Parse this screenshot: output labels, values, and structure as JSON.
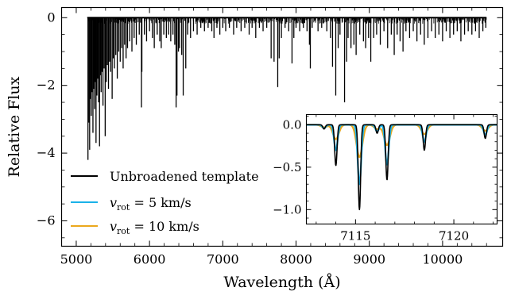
{
  "chart_data": [
    {
      "id": "main",
      "type": "line",
      "title": "",
      "xlabel": "Wavelength (Å)",
      "ylabel": "Relative Flux",
      "xlim": [
        4800,
        10820
      ],
      "ylim": [
        -6.75,
        0.3
      ],
      "xticks": [
        5000,
        6000,
        7000,
        8000,
        9000,
        10000
      ],
      "xtick_labels": [
        "5000",
        "6000",
        "7000",
        "8000",
        "9000",
        "10000"
      ],
      "yticks": [
        0,
        -2,
        -4,
        -6
      ],
      "ytick_labels": [
        "0",
        "−2",
        "−4",
        "−6"
      ],
      "grid": false,
      "legend_position": "lower-left",
      "legend": [
        {
          "label": "Unbroadened template",
          "color": "#000000"
        },
        {
          "label": "v_rot = 5 km/s",
          "color": "#1ab2e8"
        },
        {
          "label": "v_rot = 10 km/s",
          "color": "#eba81c"
        }
      ],
      "series": [
        {
          "name": "Unbroadened template",
          "continuum": 0.0,
          "wavelength_range": [
            5150,
            10600
          ],
          "absorption_lines": [
            [
              5160,
              -4.2
            ],
            [
              5172,
              -3.1
            ],
            [
              5183,
              -3.9
            ],
            [
              5195,
              -2.4
            ],
            [
              5205,
              -2.9
            ],
            [
              5215,
              -2.2
            ],
            [
              5228,
              -3.4
            ],
            [
              5240,
              -2.1
            ],
            [
              5250,
              -2.7
            ],
            [
              5262,
              -1.9
            ],
            [
              5270,
              -3.7
            ],
            [
              5282,
              -2.3
            ],
            [
              5295,
              -1.8
            ],
            [
              5305,
              -2.5
            ],
            [
              5318,
              -3.8
            ],
            [
              5330,
              -1.7
            ],
            [
              5340,
              -2.2
            ],
            [
              5352,
              -1.6
            ],
            [
              5365,
              -2.6
            ],
            [
              5380,
              -1.5
            ],
            [
              5395,
              -3.5
            ],
            [
              5410,
              -1.9
            ],
            [
              5425,
              -1.4
            ],
            [
              5440,
              -2.1
            ],
            [
              5455,
              -1.3
            ],
            [
              5470,
              -1.6
            ],
            [
              5490,
              -2.4
            ],
            [
              5505,
              -1.2
            ],
            [
              5520,
              -1.5
            ],
            [
              5540,
              -1.1
            ],
            [
              5560,
              -1.8
            ],
            [
              5580,
              -1.0
            ],
            [
              5600,
              -1.3
            ],
            [
              5620,
              -0.9
            ],
            [
              5640,
              -1.5
            ],
            [
              5660,
              -0.8
            ],
            [
              5680,
              -1.2
            ],
            [
              5700,
              -0.9
            ],
            [
              5730,
              -0.7
            ],
            [
              5760,
              -1.0
            ],
            [
              5790,
              -0.6
            ],
            [
              5820,
              -0.8
            ],
            [
              5860,
              -0.5
            ],
            [
              5890,
              -2.65
            ],
            [
              5896,
              -1.6
            ],
            [
              5930,
              -0.5
            ],
            [
              5960,
              -0.7
            ],
            [
              6000,
              -0.4
            ],
            [
              6040,
              -0.6
            ],
            [
              6065,
              -0.9
            ],
            [
              6105,
              -0.5
            ],
            [
              6140,
              -0.7
            ],
            [
              6160,
              -0.9
            ],
            [
              6195,
              -0.5
            ],
            [
              6230,
              -0.6
            ],
            [
              6260,
              -0.5
            ],
            [
              6290,
              -0.7
            ],
            [
              6320,
              -0.5
            ],
            [
              6345,
              -0.8
            ],
            [
              6363,
              -2.65
            ],
            [
              6375,
              -2.3
            ],
            [
              6395,
              -1.0
            ],
            [
              6410,
              -0.9
            ],
            [
              6440,
              -1.1
            ],
            [
              6460,
              -2.3
            ],
            [
              6495,
              -1.5
            ],
            [
              6520,
              -0.5
            ],
            [
              6560,
              -0.6
            ],
            [
              6600,
              -0.4
            ],
            [
              6650,
              -0.5
            ],
            [
              6700,
              -0.3
            ],
            [
              6750,
              -0.4
            ],
            [
              6800,
              -0.3
            ],
            [
              6850,
              -0.4
            ],
            [
              6880,
              -0.6
            ],
            [
              6920,
              -0.3
            ],
            [
              6960,
              -0.5
            ],
            [
              7000,
              -0.3
            ],
            [
              7040,
              -0.4
            ],
            [
              7090,
              -0.3
            ],
            [
              7148,
              -0.5
            ],
            [
              7190,
              -0.3
            ],
            [
              7250,
              -0.4
            ],
            [
              7300,
              -0.3
            ],
            [
              7360,
              -0.5
            ],
            [
              7400,
              -0.3
            ],
            [
              7450,
              -0.6
            ],
            [
              7500,
              -0.3
            ],
            [
              7550,
              -0.4
            ],
            [
              7600,
              -0.3
            ],
            [
              7660,
              -1.2
            ],
            [
              7700,
              -1.3
            ],
            [
              7750,
              -2.05
            ],
            [
              7770,
              -1.2
            ],
            [
              7800,
              -0.6
            ],
            [
              7850,
              -0.3
            ],
            [
              7900,
              -0.4
            ],
            [
              7945,
              -1.35
            ],
            [
              7970,
              -0.6
            ],
            [
              8000,
              -0.3
            ],
            [
              8050,
              -0.4
            ],
            [
              8100,
              -0.3
            ],
            [
              8150,
              -0.4
            ],
            [
              8183,
              -0.8
            ],
            [
              8195,
              -1.5
            ],
            [
              8220,
              -0.3
            ],
            [
              8300,
              -0.4
            ],
            [
              8350,
              -0.3
            ],
            [
              8420,
              -0.4
            ],
            [
              8470,
              -0.6
            ],
            [
              8498,
              -1.45
            ],
            [
              8542,
              -2.3
            ],
            [
              8575,
              -0.9
            ],
            [
              8600,
              -0.5
            ],
            [
              8662,
              -2.5
            ],
            [
              8690,
              -1.3
            ],
            [
              8710,
              -0.6
            ],
            [
              8750,
              -0.9
            ],
            [
              8790,
              -0.8
            ],
            [
              8820,
              -1.1
            ],
            [
              8870,
              -0.5
            ],
            [
              8920,
              -0.7
            ],
            [
              8950,
              -0.9
            ],
            [
              8990,
              -0.6
            ],
            [
              9020,
              -1.3
            ],
            [
              9060,
              -0.6
            ],
            [
              9100,
              -0.5
            ],
            [
              9150,
              -0.8
            ],
            [
              9200,
              -0.4
            ],
            [
              9250,
              -0.9
            ],
            [
              9300,
              -0.5
            ],
            [
              9340,
              -1.1
            ],
            [
              9380,
              -0.5
            ],
            [
              9420,
              -0.7
            ],
            [
              9460,
              -1.0
            ],
            [
              9500,
              -0.4
            ],
            [
              9550,
              -0.6
            ],
            [
              9600,
              -0.4
            ],
            [
              9650,
              -0.7
            ],
            [
              9700,
              -0.5
            ],
            [
              9750,
              -0.8
            ],
            [
              9800,
              -0.6
            ],
            [
              9850,
              -0.4
            ],
            [
              9900,
              -0.6
            ],
            [
              9950,
              -0.5
            ],
            [
              10000,
              -0.7
            ],
            [
              10050,
              -0.4
            ],
            [
              10100,
              -0.6
            ],
            [
              10150,
              -0.5
            ],
            [
              10200,
              -0.4
            ],
            [
              10250,
              -0.7
            ],
            [
              10300,
              -0.5
            ],
            [
              10350,
              -0.4
            ],
            [
              10400,
              -0.5
            ],
            [
              10450,
              -0.4
            ],
            [
              10500,
              -0.6
            ],
            [
              10550,
              -0.4
            ],
            [
              10590,
              -0.3
            ]
          ],
          "weak_lines": {
            "count": 700,
            "max_depth": -0.18
          }
        }
      ]
    },
    {
      "id": "inset",
      "type": "line",
      "title": "",
      "xlabel": "",
      "ylabel": "",
      "xlim": [
        7112.5,
        7122.2
      ],
      "ylim": [
        -1.17,
        0.12
      ],
      "xticks": [
        7115,
        7120
      ],
      "xtick_labels": [
        "7115",
        "7120"
      ],
      "yticks": [
        0.0,
        -0.5,
        -1.0
      ],
      "ytick_labels": [
        "0.0",
        "−0.5",
        "−1.0"
      ],
      "grid": false,
      "line_centers": [
        7113.4,
        7114.0,
        7115.2,
        7116.1,
        7116.6,
        7118.5,
        7121.6
      ],
      "series": [
        {
          "name": "Unbroadened template",
          "color": "#000000",
          "depths": [
            -0.05,
            -0.48,
            -1.0,
            -0.1,
            -0.65,
            -0.3,
            -0.16
          ]
        },
        {
          "name": "v_rot = 5 km/s",
          "color": "#1ab2e8",
          "depths": [
            -0.04,
            -0.3,
            -0.7,
            -0.08,
            -0.47,
            -0.2,
            -0.12
          ]
        },
        {
          "name": "v_rot = 10 km/s",
          "color": "#eba81c",
          "depths": [
            -0.03,
            -0.17,
            -0.38,
            -0.05,
            -0.24,
            -0.11,
            -0.07
          ]
        }
      ]
    }
  ]
}
